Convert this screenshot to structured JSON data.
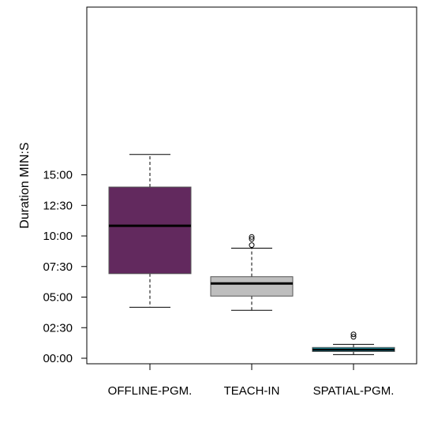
{
  "chart_data": {
    "type": "boxplot",
    "ylabel": "Duration MIN:S",
    "ylim_seconds": [
      0,
      1020
    ],
    "y_ticks": [
      {
        "seconds": 0,
        "label": "00:00"
      },
      {
        "seconds": 150,
        "label": "02:30"
      },
      {
        "seconds": 300,
        "label": "05:00"
      },
      {
        "seconds": 450,
        "label": "07:30"
      },
      {
        "seconds": 600,
        "label": "10:00"
      },
      {
        "seconds": 750,
        "label": "12:30"
      },
      {
        "seconds": 900,
        "label": "15:00"
      }
    ],
    "grid": false,
    "categories": [
      "OFFLINE-PGM.",
      "TEACH-IN",
      "SPATIAL-PGM."
    ],
    "boxes": [
      {
        "category": "OFFLINE-PGM.",
        "whisker_low": 250,
        "q1": 415,
        "median": 650,
        "q3": 840,
        "whisker_high": 1000,
        "outliers": [],
        "color": "#62295E"
      },
      {
        "category": "TEACH-IN",
        "whisker_low": 235,
        "q1": 305,
        "median": 367,
        "q3": 400,
        "whisker_high": 540,
        "outliers": [
          555,
          585,
          595
        ],
        "color": "#BEBEBE"
      },
      {
        "category": "SPATIAL-PGM.",
        "whisker_low": 18,
        "q1": 33,
        "median": 42,
        "q3": 53,
        "whisker_high": 68,
        "outliers": [
          105,
          117
        ],
        "color": "#2AC3DB"
      }
    ]
  }
}
